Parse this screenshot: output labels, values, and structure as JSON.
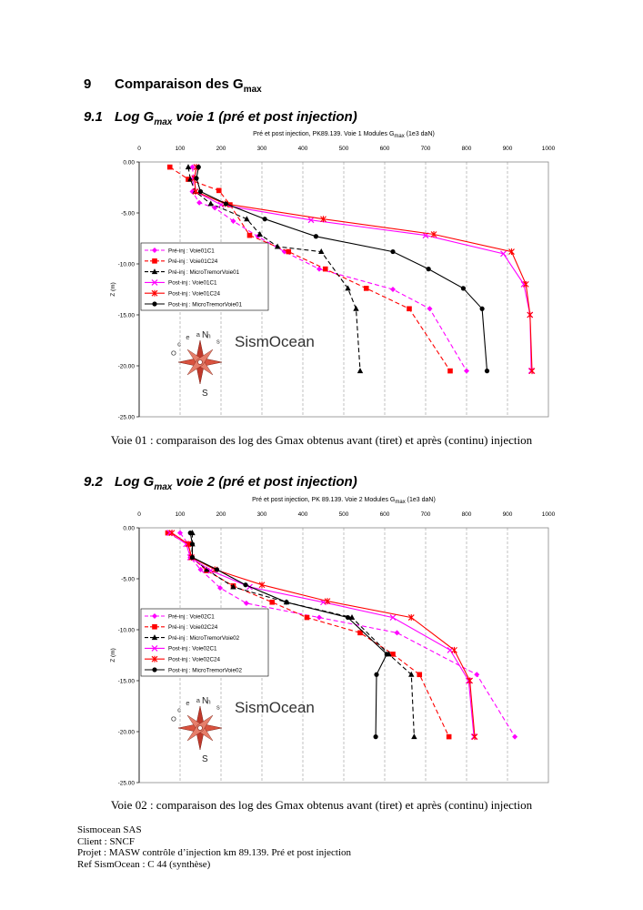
{
  "section": {
    "number": "9",
    "title_main": "Comparaison des G",
    "title_sub": "max"
  },
  "figures": [
    {
      "heading_number": "9.1",
      "heading_pre": "Log G",
      "heading_sub": "max",
      "heading_post": " voie 1 (pré et post injection)",
      "caption": "Voie 01 : comparaison des log des Gmax obtenus avant (tiret) et après (continu) injection",
      "chart_data": {
        "type": "line",
        "title_pre": "Pré et post injection, PK89.139. Voie 1 Modules G",
        "title_sub": "max",
        "title_post": " (1e3 daN)",
        "ylabel": "Z (m)",
        "xlim": [
          0,
          1000
        ],
        "ylim": [
          0,
          -25
        ],
        "x_ticks": [
          "0",
          "100",
          "200",
          "300",
          "400",
          "500",
          "600",
          "700",
          "800",
          "900",
          "1000"
        ],
        "y_ticks": [
          "0.00",
          "-5.00",
          "-10.00",
          "-15.00",
          "-20.00",
          "-25.00"
        ],
        "watermark": "SismOcean",
        "compass_n": "N",
        "compass_s": "S",
        "compass_ring": "Oceans",
        "legend": "left",
        "series": [
          {
            "name": "Pré-inj : Voie01C1",
            "color": "#ff00ff",
            "style": "dash",
            "marker": "diamond",
            "x": [
              130,
              133,
              130,
              147,
              185,
              230,
              290,
              355,
              440,
              620,
              710,
              800
            ],
            "y": [
              -0.5,
              -1.6,
              -2.9,
              -4.0,
              -4.5,
              -5.8,
              -7.3,
              -8.8,
              -10.5,
              -12.5,
              -14.4,
              -20.5
            ]
          },
          {
            "name": "Pré-inj : Voie01C24",
            "color": "#ff0000",
            "style": "dash",
            "marker": "square",
            "x": [
              75,
              120,
              195,
              222,
              270,
              365,
              455,
              555,
              660,
              760
            ],
            "y": [
              -0.5,
              -1.7,
              -2.8,
              -4.2,
              -7.2,
              -8.8,
              -10.5,
              -12.4,
              -14.4,
              -20.5
            ]
          },
          {
            "name": "Pré-inj : MicroTremorVoie01",
            "color": "#000000",
            "style": "dash",
            "marker": "triangle",
            "x": [
              120,
              125,
              137,
              175,
              263,
              295,
              338,
              445,
              510,
              530,
              540
            ],
            "y": [
              -0.5,
              -1.7,
              -2.9,
              -4.1,
              -5.6,
              -7.1,
              -8.3,
              -8.8,
              -12.4,
              -14.4,
              -20.5
            ]
          },
          {
            "name": "Post-inj : Voie01C1",
            "color": "#ff00ff",
            "style": "solid",
            "marker": "x",
            "x": [
              140,
              135,
              138,
              200,
              420,
              700,
              890,
              940,
              955,
              958
            ],
            "y": [
              -0.5,
              -1.6,
              -2.9,
              -4.2,
              -5.7,
              -7.2,
              -9.0,
              -12.0,
              -15.0,
              -20.5
            ]
          },
          {
            "name": "Post-inj : Voie01C24",
            "color": "#ff0000",
            "style": "solid",
            "marker": "star",
            "x": [
              140,
              135,
              138,
              210,
              450,
              720,
              910,
              945,
              955,
              960
            ],
            "y": [
              -0.5,
              -1.6,
              -2.9,
              -4.1,
              -5.6,
              -7.1,
              -8.8,
              -12.0,
              -15.0,
              -20.5
            ]
          },
          {
            "name": "Post-inj : MicroTremorVoie01",
            "color": "#000000",
            "style": "solid",
            "marker": "circle",
            "x": [
              145,
              140,
              150,
              212,
              307,
              432,
              620,
              707,
              792,
              838,
              850
            ],
            "y": [
              -0.5,
              -1.6,
              -2.9,
              -4.1,
              -5.6,
              -7.3,
              -8.8,
              -10.5,
              -12.4,
              -14.4,
              -20.5
            ]
          }
        ]
      }
    },
    {
      "heading_number": "9.2",
      "heading_pre": "Log G",
      "heading_sub": "max",
      "heading_post": " voie 2 (pré et post injection)",
      "caption": "Voie 02 : comparaison des log des Gmax obtenus avant (tiret) et après (continu) injection",
      "chart_data": {
        "type": "line",
        "title_pre": "Pré et post injection, PK 89.139. Voie 2 Modules G",
        "title_sub": "max",
        "title_post": " (1e3 daN)",
        "ylabel": "Z (m)",
        "xlim": [
          0,
          1000
        ],
        "ylim": [
          0,
          -25
        ],
        "x_ticks": [
          "0",
          "100",
          "200",
          "300",
          "400",
          "500",
          "600",
          "700",
          "800",
          "900",
          "1000"
        ],
        "y_ticks": [
          "0.00",
          "-5.00",
          "-10.00",
          "-15.00",
          "-20.00",
          "-25.00"
        ],
        "watermark": "SismOcean",
        "compass_n": "N",
        "compass_s": "S",
        "compass_ring": "Oceans",
        "legend": "left",
        "series": [
          {
            "name": "Pré-inj : Voie02C1",
            "color": "#ff00ff",
            "style": "dash",
            "marker": "diamond",
            "x": [
              100,
              120,
              125,
              150,
              198,
              262,
              440,
              630,
              825,
              918
            ],
            "y": [
              -0.5,
              -1.6,
              -2.9,
              -4.1,
              -5.9,
              -7.4,
              -8.8,
              -10.3,
              -14.4,
              -20.5
            ]
          },
          {
            "name": "Pré-inj : Voie02C24",
            "color": "#ff0000",
            "style": "dash",
            "marker": "square",
            "x": [
              70,
              120,
              128,
              165,
              230,
              325,
              410,
              540,
              620,
              685,
              757
            ],
            "y": [
              -0.5,
              -1.6,
              -2.9,
              -4.2,
              -5.7,
              -7.3,
              -8.8,
              -10.3,
              -12.4,
              -14.4,
              -20.5
            ]
          },
          {
            "name": "Pré-inj : MicroTremorVoie02",
            "color": "#000000",
            "style": "dash",
            "marker": "triangle",
            "x": [
              130,
              130,
              128,
              165,
              230,
              360,
              520,
              610,
              665,
              672
            ],
            "y": [
              -0.5,
              -1.6,
              -2.9,
              -4.1,
              -5.8,
              -7.3,
              -8.8,
              -12.4,
              -14.4,
              -20.5
            ]
          },
          {
            "name": "Post-inj : Voie02C1",
            "color": "#ff00ff",
            "style": "solid",
            "marker": "x",
            "x": [
              75,
              115,
              125,
              175,
              270,
              450,
              620,
              760,
              805,
              818
            ],
            "y": [
              -0.5,
              -1.6,
              -2.9,
              -4.2,
              -5.8,
              -7.3,
              -8.8,
              -12.0,
              -15.0,
              -20.5
            ]
          },
          {
            "name": "Post-inj : Voie02C24",
            "color": "#ff0000",
            "style": "solid",
            "marker": "star",
            "x": [
              80,
              120,
              128,
              185,
              300,
              460,
              665,
              770,
              808,
              820
            ],
            "y": [
              -0.5,
              -1.6,
              -2.9,
              -4.1,
              -5.6,
              -7.2,
              -8.8,
              -12.0,
              -15.0,
              -20.5
            ]
          },
          {
            "name": "Post-inj : MicroTremorVoie02",
            "color": "#000000",
            "style": "solid",
            "marker": "circle",
            "x": [
              125,
              130,
              130,
              190,
              260,
              360,
              510,
              605,
              580,
              578
            ],
            "y": [
              -0.5,
              -1.6,
              -2.9,
              -4.1,
              -5.6,
              -7.3,
              -8.8,
              -12.4,
              -14.4,
              -20.5
            ]
          }
        ]
      }
    }
  ],
  "footer": [
    "Sismocean SAS",
    "Client  : SNCF",
    "Projet : MASW contrôle d’injection km 89.139. Pré et post injection",
    "Ref SismOcean : C 44 (synthèse)"
  ]
}
